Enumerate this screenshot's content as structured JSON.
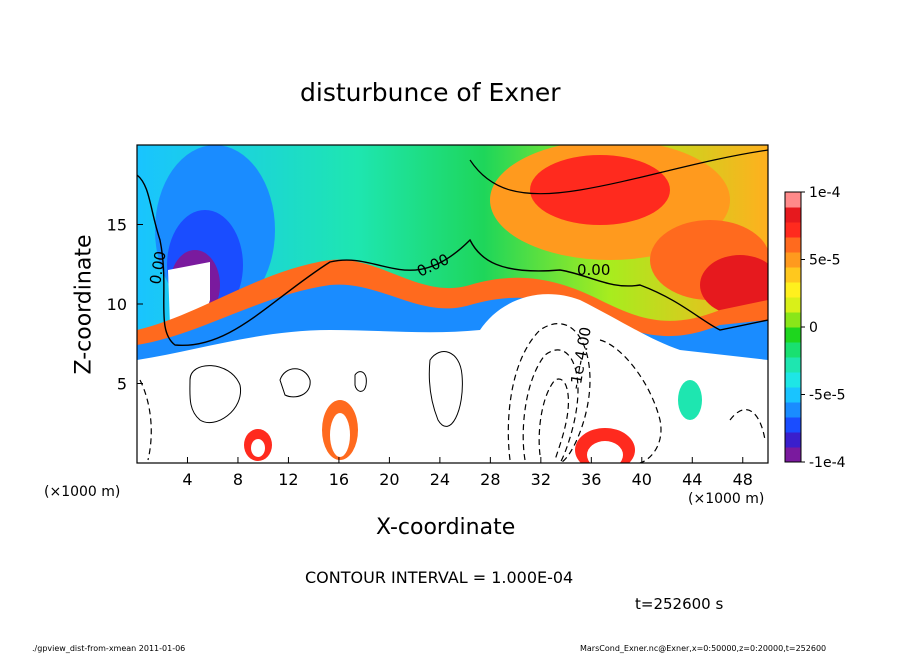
{
  "title": "disturbunce of Exner",
  "contour_interval": "CONTOUR INTERVAL = 1.000E-04",
  "time_label": "t=252600 s",
  "footer_left": "./gpview_dist-from-xmean  2011-01-06",
  "footer_right": "MarsCond_Exner.nc@Exner,x=0:50000,z=0:20000,t=252600",
  "chart_data": {
    "type": "heatmap",
    "title": "disturbunce of Exner",
    "xlabel": "X-coordinate",
    "ylabel": "Z-coordinate",
    "x_units": "(×1000 m)",
    "z_units": "(×1000 m)",
    "xlim": [
      0,
      50
    ],
    "ylim": [
      0,
      20
    ],
    "xticks": [
      4,
      8,
      12,
      16,
      20,
      24,
      28,
      32,
      36,
      40,
      44,
      48
    ],
    "yticks": [
      5,
      10,
      15
    ],
    "colorbar": {
      "range": [
        -0.0001,
        0.0001
      ],
      "tick_labels": [
        "1e-4",
        "5e-5",
        "0",
        "-5e-5",
        "-1e-4"
      ],
      "colors": [
        "#7a1a9e",
        "#3a1fcc",
        "#1a4dff",
        "#1a8cff",
        "#19c4ff",
        "#1ee6e6",
        "#1ee6b0",
        "#19e070",
        "#1ed61e",
        "#8ae619",
        "#d9f019",
        "#fff01e",
        "#ffc81e",
        "#ff9a1e",
        "#ff6a1e",
        "#ff2a1e",
        "#e6191e",
        "#ff8a8a"
      ]
    },
    "contour_labels": [
      "0.00",
      "0.00",
      "0.00",
      "-1e-4.00"
    ]
  }
}
